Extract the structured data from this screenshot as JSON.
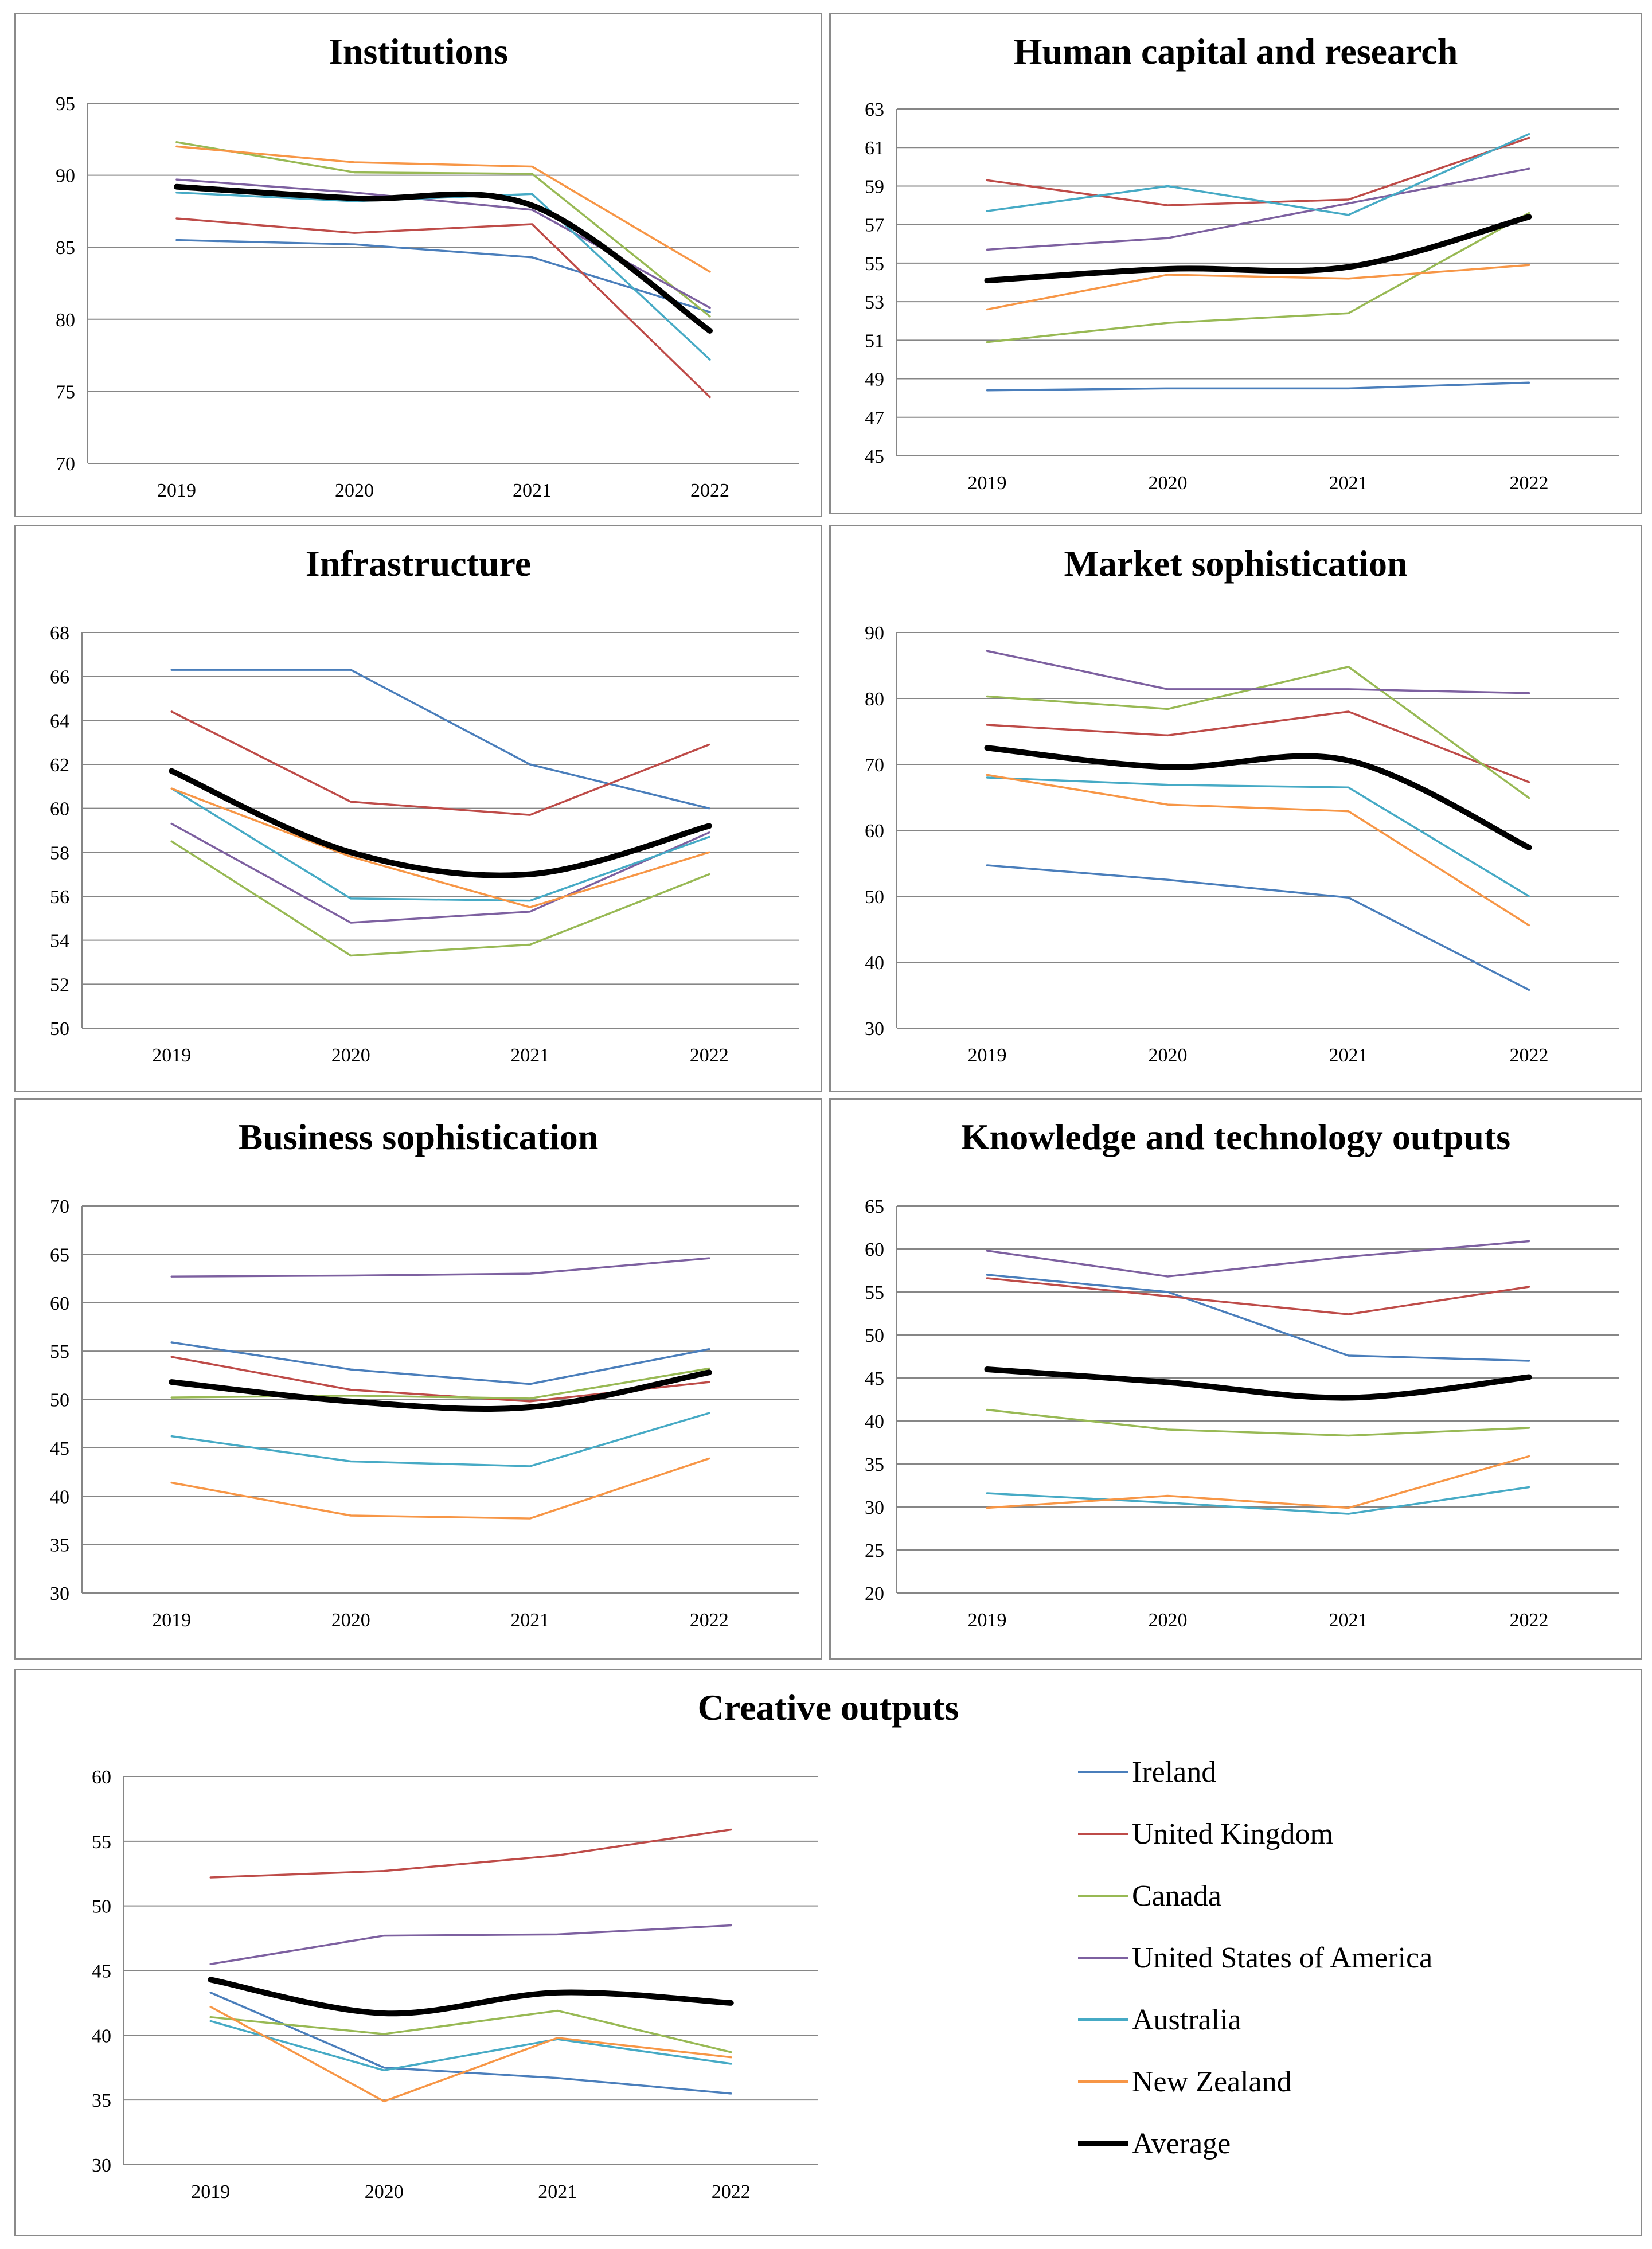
{
  "series_names": [
    "Ireland",
    "United Kingdom",
    "Canada",
    "United States of America",
    "Australia",
    "New Zealand",
    "Average"
  ],
  "series_colors": [
    "#4a7ebb",
    "#be4b48",
    "#98b954",
    "#7d60a0",
    "#46aac5",
    "#f79646",
    "#000000"
  ],
  "legend": {
    "items": [
      {
        "label": "Ireland",
        "color": "#4a7ebb"
      },
      {
        "label": "United Kingdom",
        "color": "#be4b48"
      },
      {
        "label": "Canada",
        "color": "#98b954"
      },
      {
        "label": "United States of America",
        "color": "#7d60a0"
      },
      {
        "label": "Australia",
        "color": "#46aac5"
      },
      {
        "label": "New Zealand",
        "color": "#f79646"
      },
      {
        "label": "Average",
        "color": "#000000"
      }
    ]
  },
  "chart_data": [
    {
      "type": "line",
      "title": "Institutions",
      "categories": [
        "2019",
        "2020",
        "2021",
        "2022"
      ],
      "ylim": [
        70,
        95
      ],
      "yticks": [
        70,
        75,
        80,
        85,
        90,
        95
      ],
      "series": [
        {
          "name": "Ireland",
          "values": [
            85.5,
            85.2,
            84.3,
            80.5
          ]
        },
        {
          "name": "United Kingdom",
          "values": [
            87.0,
            86.0,
            86.6,
            74.6
          ]
        },
        {
          "name": "Canada",
          "values": [
            92.3,
            90.2,
            90.1,
            80.2
          ]
        },
        {
          "name": "United States of America",
          "values": [
            89.7,
            88.8,
            87.6,
            80.8
          ]
        },
        {
          "name": "Australia",
          "values": [
            88.8,
            88.2,
            88.7,
            77.2
          ]
        },
        {
          "name": "New Zealand",
          "values": [
            92.0,
            90.9,
            90.6,
            83.3
          ]
        },
        {
          "name": "Average",
          "values": [
            89.2,
            88.4,
            87.9,
            79.2
          ]
        }
      ]
    },
    {
      "type": "line",
      "title": "Human capital and research",
      "categories": [
        "2019",
        "2020",
        "2021",
        "2022"
      ],
      "ylim": [
        45,
        63
      ],
      "yticks": [
        45,
        47,
        49,
        51,
        53,
        55,
        57,
        59,
        61,
        63
      ],
      "series": [
        {
          "name": "Ireland",
          "values": [
            48.4,
            48.5,
            48.5,
            48.8
          ]
        },
        {
          "name": "United Kingdom",
          "values": [
            59.3,
            58.0,
            58.3,
            61.5
          ]
        },
        {
          "name": "Canada",
          "values": [
            50.9,
            51.9,
            52.4,
            57.6
          ]
        },
        {
          "name": "United States of America",
          "values": [
            55.7,
            56.3,
            58.1,
            59.9
          ]
        },
        {
          "name": "Australia",
          "values": [
            57.7,
            59.0,
            57.5,
            61.7
          ]
        },
        {
          "name": "New Zealand",
          "values": [
            52.6,
            54.4,
            54.2,
            54.9
          ]
        },
        {
          "name": "Average",
          "values": [
            54.1,
            54.7,
            54.8,
            57.4
          ]
        }
      ]
    },
    {
      "type": "line",
      "title": "Infrastructure",
      "categories": [
        "2019",
        "2020",
        "2021",
        "2022"
      ],
      "ylim": [
        50,
        68
      ],
      "yticks": [
        50,
        52,
        54,
        56,
        58,
        60,
        62,
        64,
        66,
        68
      ],
      "series": [
        {
          "name": "Ireland",
          "values": [
            66.3,
            66.3,
            62.0,
            60.0
          ]
        },
        {
          "name": "United Kingdom",
          "values": [
            64.4,
            60.3,
            59.7,
            62.9
          ]
        },
        {
          "name": "Canada",
          "values": [
            58.5,
            53.3,
            53.8,
            57.0
          ]
        },
        {
          "name": "United States of America",
          "values": [
            59.3,
            54.8,
            55.3,
            58.9
          ]
        },
        {
          "name": "Australia",
          "values": [
            60.9,
            55.9,
            55.8,
            58.7
          ]
        },
        {
          "name": "New Zealand",
          "values": [
            60.9,
            57.8,
            55.5,
            58.0
          ]
        },
        {
          "name": "Average",
          "values": [
            61.7,
            58.0,
            57.0,
            59.2
          ]
        }
      ]
    },
    {
      "type": "line",
      "title": "Market sophistication",
      "categories": [
        "2019",
        "2020",
        "2021",
        "2022"
      ],
      "ylim": [
        30,
        90
      ],
      "yticks": [
        30,
        40,
        50,
        60,
        70,
        80,
        90
      ],
      "series": [
        {
          "name": "Ireland",
          "values": [
            54.7,
            52.5,
            49.8,
            35.8
          ]
        },
        {
          "name": "United Kingdom",
          "values": [
            76.0,
            74.4,
            78.0,
            67.3
          ]
        },
        {
          "name": "Canada",
          "values": [
            80.3,
            78.4,
            84.8,
            64.9
          ]
        },
        {
          "name": "United States of America",
          "values": [
            87.2,
            81.4,
            81.4,
            80.8
          ]
        },
        {
          "name": "Australia",
          "values": [
            68.0,
            66.9,
            66.5,
            50.0
          ]
        },
        {
          "name": "New Zealand",
          "values": [
            68.4,
            63.9,
            62.9,
            45.6
          ]
        },
        {
          "name": "Average",
          "values": [
            72.5,
            69.6,
            70.6,
            57.4
          ]
        }
      ]
    },
    {
      "type": "line",
      "title": "Business sophistication",
      "categories": [
        "2019",
        "2020",
        "2021",
        "2022"
      ],
      "ylim": [
        30,
        70
      ],
      "yticks": [
        30,
        35,
        40,
        45,
        50,
        55,
        60,
        65,
        70
      ],
      "series": [
        {
          "name": "Ireland",
          "values": [
            55.9,
            53.1,
            51.6,
            55.2
          ]
        },
        {
          "name": "United Kingdom",
          "values": [
            54.4,
            51.0,
            49.8,
            51.8
          ]
        },
        {
          "name": "Canada",
          "values": [
            50.2,
            50.4,
            50.1,
            53.2
          ]
        },
        {
          "name": "United States of America",
          "values": [
            62.7,
            62.8,
            63.0,
            64.6
          ]
        },
        {
          "name": "Australia",
          "values": [
            46.2,
            43.6,
            43.1,
            48.6
          ]
        },
        {
          "name": "New Zealand",
          "values": [
            41.4,
            38.0,
            37.7,
            43.9
          ]
        },
        {
          "name": "Average",
          "values": [
            51.8,
            49.8,
            49.2,
            52.8
          ]
        }
      ]
    },
    {
      "type": "line",
      "title": "Knowledge and technology outputs",
      "categories": [
        "2019",
        "2020",
        "2021",
        "2022"
      ],
      "ylim": [
        20,
        65
      ],
      "yticks": [
        20,
        25,
        30,
        35,
        40,
        45,
        50,
        55,
        60,
        65
      ],
      "series": [
        {
          "name": "Ireland",
          "values": [
            57.0,
            55.0,
            47.6,
            47.0
          ]
        },
        {
          "name": "United Kingdom",
          "values": [
            56.6,
            54.5,
            52.4,
            55.6
          ]
        },
        {
          "name": "Canada",
          "values": [
            41.3,
            39.0,
            38.3,
            39.2
          ]
        },
        {
          "name": "United States of America",
          "values": [
            59.8,
            56.8,
            59.1,
            60.9
          ]
        },
        {
          "name": "Australia",
          "values": [
            31.6,
            30.5,
            29.2,
            32.3
          ]
        },
        {
          "name": "New Zealand",
          "values": [
            29.9,
            31.3,
            29.9,
            35.9
          ]
        },
        {
          "name": "Average",
          "values": [
            46.0,
            44.5,
            42.7,
            45.1
          ]
        }
      ]
    },
    {
      "type": "line",
      "title": "Creative outputs",
      "categories": [
        "2019",
        "2020",
        "2021",
        "2022"
      ],
      "ylim": [
        30,
        60
      ],
      "yticks": [
        30,
        35,
        40,
        45,
        50,
        55,
        60
      ],
      "series": [
        {
          "name": "Ireland",
          "values": [
            43.3,
            37.5,
            36.7,
            35.5
          ]
        },
        {
          "name": "United Kingdom",
          "values": [
            52.2,
            52.7,
            53.9,
            55.9
          ]
        },
        {
          "name": "Canada",
          "values": [
            41.4,
            40.1,
            41.9,
            38.7
          ]
        },
        {
          "name": "United States of America",
          "values": [
            45.5,
            47.7,
            47.8,
            48.5
          ]
        },
        {
          "name": "Australia",
          "values": [
            41.1,
            37.3,
            39.7,
            37.8
          ]
        },
        {
          "name": "New Zealand",
          "values": [
            42.2,
            34.9,
            39.8,
            38.3
          ]
        },
        {
          "name": "Average",
          "values": [
            44.3,
            41.7,
            43.3,
            42.5
          ]
        }
      ]
    }
  ]
}
